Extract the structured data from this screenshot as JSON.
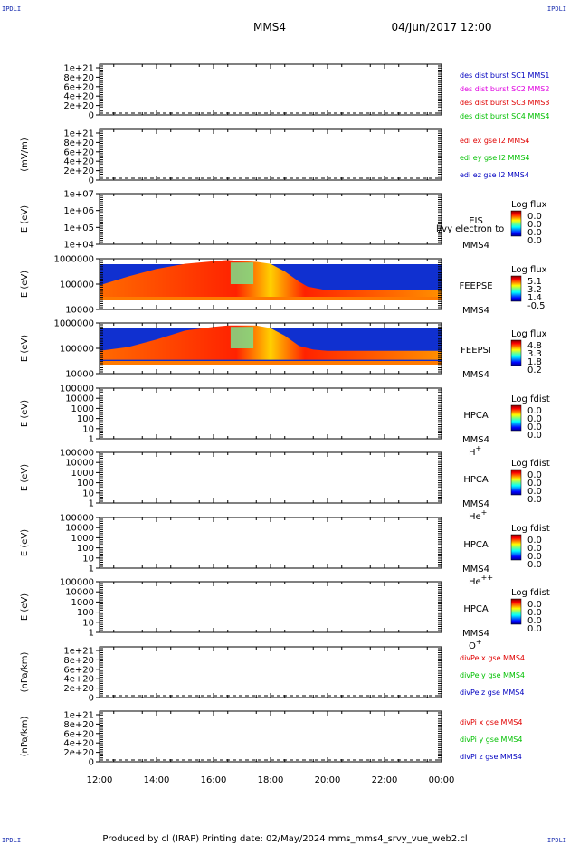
{
  "corner_labels": [
    "IPDLI",
    "IPDLI",
    "IPDLI",
    "IPDLI"
  ],
  "header": {
    "spacecraft": "MMS4",
    "datetime": "04/Jun/2017 12:00"
  },
  "footer": {
    "text": "Produced by cl (IRAP)   Printing date: 02/May/2024   mms_mms4_srvy_vue_web2.cl"
  },
  "colors": {
    "red": "#e00000",
    "magenta": "#e000e0",
    "blue": "#0000c0",
    "green": "#00c000",
    "spectrogram_bg": "#1030d0"
  },
  "chart_data": [
    {
      "type": "line",
      "panel": "des-dist-burst",
      "ylabel": "",
      "yticks": [
        "1e+21",
        "8e+20",
        "6e+20",
        "4e+20",
        "2e+20",
        "0"
      ],
      "xticks": [
        "12:00",
        "14:00",
        "16:00",
        "18:00",
        "20:00",
        "22:00",
        "00:00"
      ],
      "series": [
        {
          "name": "des dist burst SC1 MMS1",
          "color": "#0000c0",
          "values": []
        },
        {
          "name": "des dist burst SC2 MMS2",
          "color": "#e000e0",
          "values": []
        },
        {
          "name": "des dist burst SC3 MMS3",
          "color": "#e00000",
          "values": []
        },
        {
          "name": "des dist burst SC4 MMS4",
          "color": "#00c000",
          "values": []
        }
      ]
    },
    {
      "type": "line",
      "panel": "edi-e-gse",
      "ylabel": "(mV/m)",
      "yticks": [
        "1e+21",
        "8e+20",
        "6e+20",
        "4e+20",
        "2e+20",
        "0"
      ],
      "series": [
        {
          "name": "edi ex gse l2 MMS4",
          "color": "#e00000",
          "values": []
        },
        {
          "name": "edi ey gse l2 MMS4",
          "color": "#00c000",
          "values": []
        },
        {
          "name": "edi ez gse l2 MMS4",
          "color": "#0000c0",
          "values": []
        }
      ]
    },
    {
      "type": "heatmap",
      "panel": "eis",
      "ylabel": "E (eV)",
      "yticks": [
        "1e+07",
        "1e+06",
        "1e+05",
        "1e+04"
      ],
      "side_labels": [
        "EIS",
        "MMS4"
      ],
      "overlay_text": "l/vy electron to",
      "colorbar": {
        "title": "Log flux",
        "values": [
          "0.0",
          "0.0",
          "0.0",
          "0.0"
        ]
      }
    },
    {
      "type": "heatmap",
      "panel": "feeps-electron",
      "ylabel": "E (eV)",
      "yticks": [
        "1000000",
        "100000",
        "10000"
      ],
      "side_labels": [
        "FEEPSE",
        "MMS4"
      ],
      "colorbar": {
        "title": "Log flux",
        "values": [
          "5.1",
          "3.2",
          "1.4",
          "-0.5"
        ]
      },
      "x_hours": [
        12.0,
        13.0,
        14.0,
        15.0,
        16.0,
        16.5,
        17.0,
        17.5,
        18.0,
        18.5,
        19.0,
        19.3,
        20.0,
        22.0,
        24.0
      ],
      "upper_log_e": [
        4.95,
        5.3,
        5.6,
        5.8,
        5.9,
        5.95,
        5.9,
        5.88,
        5.8,
        5.5,
        5.1,
        4.9,
        4.75,
        4.75,
        4.75
      ]
    },
    {
      "type": "heatmap",
      "panel": "feeps-ion",
      "ylabel": "E (eV)",
      "yticks": [
        "1000000",
        "100000",
        "10000"
      ],
      "side_labels": [
        "FEEPSI",
        "MMS4"
      ],
      "colorbar": {
        "title": "Log flux",
        "values": [
          "4.8",
          "3.3",
          "1.8",
          "0.2"
        ]
      },
      "x_hours": [
        12.0,
        13.0,
        14.0,
        15.0,
        16.0,
        16.5,
        17.0,
        17.5,
        18.0,
        18.5,
        19.0,
        19.5,
        20.0,
        22.0,
        24.0
      ],
      "upper_log_e": [
        4.9,
        5.05,
        5.35,
        5.7,
        5.85,
        5.9,
        5.9,
        5.9,
        5.8,
        5.5,
        5.1,
        4.95,
        4.9,
        4.9,
        4.9
      ]
    },
    {
      "type": "heatmap",
      "panel": "hpca-h",
      "ylabel": "E (eV)",
      "yticks": [
        "100000",
        "10000",
        "1000",
        "100",
        "10",
        "1"
      ],
      "side_labels": [
        "HPCA",
        "MMS4"
      ],
      "species": "H",
      "species_sup": "+",
      "colorbar": {
        "title": "Log fdist",
        "values": [
          "0.0",
          "0.0",
          "0.0",
          "0.0"
        ]
      }
    },
    {
      "type": "heatmap",
      "panel": "hpca-he",
      "ylabel": "E (eV)",
      "yticks": [
        "100000",
        "10000",
        "1000",
        "100",
        "10",
        "1"
      ],
      "side_labels": [
        "HPCA",
        "MMS4"
      ],
      "species": "He",
      "species_sup": "+",
      "colorbar": {
        "title": "Log fdist",
        "values": [
          "0.0",
          "0.0",
          "0.0",
          "0.0"
        ]
      }
    },
    {
      "type": "heatmap",
      "panel": "hpca-he2",
      "ylabel": "E (eV)",
      "yticks": [
        "100000",
        "10000",
        "1000",
        "100",
        "10",
        "1"
      ],
      "side_labels": [
        "HPCA",
        "MMS4"
      ],
      "species": "He",
      "species_sup": "++",
      "colorbar": {
        "title": "Log fdist",
        "values": [
          "0.0",
          "0.0",
          "0.0",
          "0.0"
        ]
      }
    },
    {
      "type": "heatmap",
      "panel": "hpca-o",
      "ylabel": "E (eV)",
      "yticks": [
        "100000",
        "10000",
        "1000",
        "100",
        "10",
        "1"
      ],
      "side_labels": [
        "HPCA",
        "MMS4"
      ],
      "species": "O",
      "species_sup": "+",
      "colorbar": {
        "title": "Log fdist",
        "values": [
          "0.0",
          "0.0",
          "0.0",
          "0.0"
        ]
      }
    },
    {
      "type": "line",
      "panel": "divpe",
      "ylabel": "(nPa/km)",
      "yticks": [
        "1e+21",
        "8e+20",
        "6e+20",
        "4e+20",
        "2e+20",
        "0"
      ],
      "series": [
        {
          "name": "divPe x gse MMS4",
          "color": "#e00000",
          "values": []
        },
        {
          "name": "divPe y gse MMS4",
          "color": "#00c000",
          "values": []
        },
        {
          "name": "divPe z gse MMS4",
          "color": "#0000c0",
          "values": []
        }
      ]
    },
    {
      "type": "line",
      "panel": "divpi",
      "ylabel": "(nPa/km)",
      "yticks": [
        "1e+21",
        "8e+20",
        "6e+20",
        "4e+20",
        "2e+20",
        "0"
      ],
      "series": [
        {
          "name": "divPi x gse MMS4",
          "color": "#e00000",
          "values": []
        },
        {
          "name": "divPi y gse MMS4",
          "color": "#00c000",
          "values": []
        },
        {
          "name": "divPi z gse MMS4",
          "color": "#0000c0",
          "values": []
        }
      ]
    }
  ]
}
